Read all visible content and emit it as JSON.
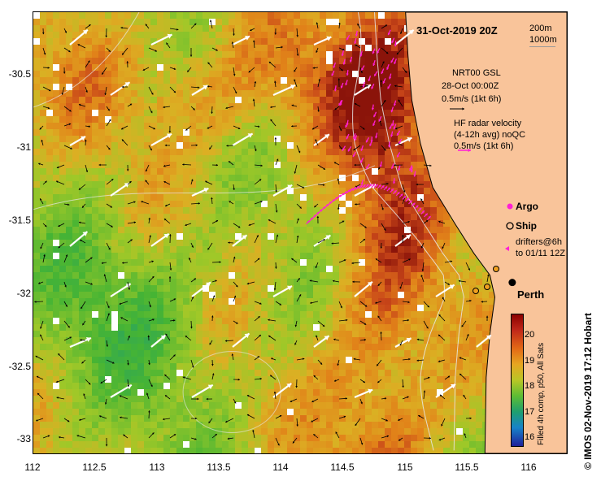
{
  "map": {
    "title": "31-Oct-2019 20Z",
    "x_ticks": [
      "112",
      "112.5",
      "113",
      "113.5",
      "114",
      "114.5",
      "115",
      "115.5",
      "116"
    ],
    "y_ticks": [
      "-30.5",
      "-31",
      "-31.5",
      "-32",
      "-32.5",
      "-33"
    ],
    "lon_range": [
      112,
      116.3
    ],
    "lat_range": [
      -33.12,
      -30.1
    ],
    "depth_contours": [
      "200m",
      "1000m"
    ],
    "model_label_1": "NRT00 GSL",
    "model_label_2": "28-Oct 00:00Z",
    "model_scale": "0.5m/s (1kt 6h)",
    "radar_label_1": "HF radar velocity",
    "radar_label_2": "(4-12h avg) noQC",
    "radar_scale": "0.5m/s (1kt 6h)",
    "argo_label": "Argo",
    "ship_label": "Ship",
    "drifters_label_1": "drifters@6h",
    "drifters_label_2": "to 01/11 12Z",
    "city_label": "Perth",
    "city_lonlat": [
      115.86,
      -31.95
    ],
    "colorbar_label": "Filled 4h comp, p50, All Sats",
    "colorbar_ticks": [
      "20",
      "19",
      "18",
      "17",
      "16"
    ],
    "colorbar_range": [
      15.5,
      20.6
    ],
    "credit": "© IMOS 02-Nov-2019 17:12 Hobart",
    "colors": {
      "land": "#f9c49a",
      "coast": "#000000",
      "radar": "#ff1fd6",
      "model_arrow": "#ffffff",
      "contour": "#e8e8e8"
    }
  }
}
